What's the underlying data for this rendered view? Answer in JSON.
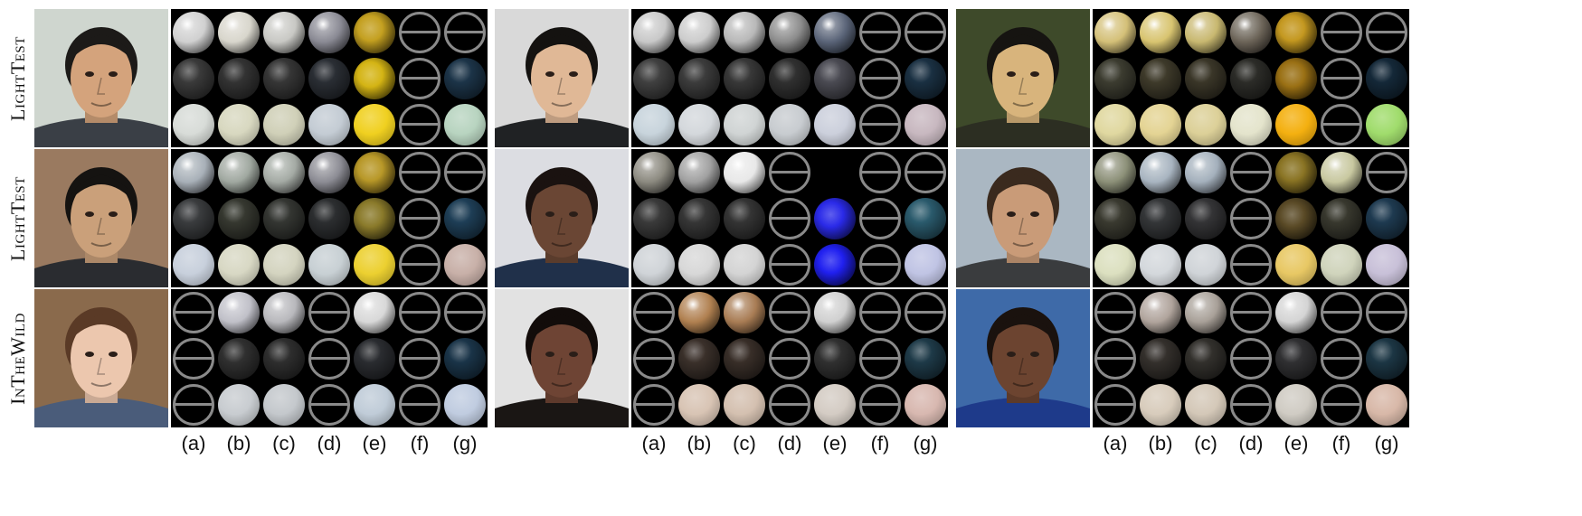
{
  "row_labels": [
    "LightTest",
    "LightTest",
    "InTheWild"
  ],
  "column_labels": [
    "(a)",
    "(b)",
    "(c)",
    "(d)",
    "(e)",
    "(f)",
    "(g)"
  ],
  "face_palettes": [
    {
      "bg": "#cfd6cf",
      "skin": "#d4a37c",
      "hair": "#1c1a18",
      "cloth": "#3a3f46"
    },
    {
      "bg": "#d9d9d9",
      "skin": "#e0b896",
      "hair": "#141210",
      "cloth": "#202224"
    },
    {
      "bg": "#3e4a2a",
      "skin": "#d8b47c",
      "hair": "#161411",
      "cloth": "#2c2e22"
    },
    {
      "bg": "#9a7a60",
      "skin": "#caa07a",
      "hair": "#151311",
      "cloth": "#2a2c30"
    },
    {
      "bg": "#dcdde2",
      "skin": "#6a4634",
      "hair": "#1a1210",
      "cloth": "#20304a"
    },
    {
      "bg": "#aab7c2",
      "skin": "#c99b78",
      "hair": "#3a2a1e",
      "cloth": "#3a3c3e"
    },
    {
      "bg": "#8a6a4c",
      "skin": "#ecc7ae",
      "hair": "#5a3a26",
      "cloth": "#4a5c7a"
    },
    {
      "bg": "#e2e2e2",
      "skin": "#6e4434",
      "hair": "#120c0a",
      "cloth": "#1a1614"
    },
    {
      "bg": "#3e6aa8",
      "skin": "#6c4430",
      "hair": "#1a120e",
      "cloth": "#1e3a8a"
    }
  ],
  "panels": [
    [
      [
        {
          "t": "chrome",
          "c": "#d0d0d0"
        },
        {
          "t": "chrome",
          "c": "#d8d6cc"
        },
        {
          "t": "chrome",
          "c": "#c8c8c4"
        },
        {
          "t": "chrome",
          "c": "#8a8a94"
        },
        {
          "t": "glow",
          "c": "#c4a020"
        },
        {
          "t": "empty"
        },
        {
          "t": "empty"
        }
      ],
      [
        {
          "t": "glossy",
          "c": "#3a3a3a"
        },
        {
          "t": "glossy",
          "c": "#333333"
        },
        {
          "t": "glossy",
          "c": "#363636"
        },
        {
          "t": "glossy",
          "c": "#2a2e34"
        },
        {
          "t": "glow",
          "c": "#d4b414"
        },
        {
          "t": "empty"
        },
        {
          "t": "glossy",
          "c": "#1c3448"
        }
      ],
      [
        {
          "t": "diffuse",
          "c": "#d8dcd8"
        },
        {
          "t": "diffuse",
          "c": "#d8d8c0"
        },
        {
          "t": "diffuse",
          "c": "#d0d0b8"
        },
        {
          "t": "diffuse",
          "c": "#c4ccd4"
        },
        {
          "t": "diffuse",
          "c": "#f0d020"
        },
        {
          "t": "empty"
        },
        {
          "t": "diffuse",
          "c": "#b8d4c0"
        }
      ]
    ],
    [
      [
        {
          "t": "chrome",
          "c": "#c8c8c8"
        },
        {
          "t": "chrome",
          "c": "#cccccc"
        },
        {
          "t": "chrome",
          "c": "#b8b8b8"
        },
        {
          "t": "chrome",
          "c": "#8c8c8c"
        },
        {
          "t": "chrome",
          "c": "#5a6478"
        },
        {
          "t": "empty"
        },
        {
          "t": "empty"
        }
      ],
      [
        {
          "t": "glossy",
          "c": "#404040"
        },
        {
          "t": "glossy",
          "c": "#3c3c3c"
        },
        {
          "t": "glossy",
          "c": "#383838"
        },
        {
          "t": "glossy",
          "c": "#303030"
        },
        {
          "t": "glossy",
          "c": "#4a4a52"
        },
        {
          "t": "empty"
        },
        {
          "t": "glossy",
          "c": "#1a3042"
        }
      ],
      [
        {
          "t": "diffuse",
          "c": "#c8d4dc"
        },
        {
          "t": "diffuse",
          "c": "#d4d8dc"
        },
        {
          "t": "diffuse",
          "c": "#d0d4d4"
        },
        {
          "t": "diffuse",
          "c": "#c8ccd0"
        },
        {
          "t": "diffuse",
          "c": "#ccd0dc"
        },
        {
          "t": "empty"
        },
        {
          "t": "diffuse",
          "c": "#c8b8c0"
        }
      ]
    ],
    [
      [
        {
          "t": "chrome",
          "c": "#d4c078"
        },
        {
          "t": "chrome",
          "c": "#d8c470"
        },
        {
          "t": "chrome",
          "c": "#c8b870"
        },
        {
          "t": "chrome",
          "c": "#6c6458"
        },
        {
          "t": "glow",
          "c": "#c49820"
        },
        {
          "t": "empty"
        },
        {
          "t": "empty"
        }
      ],
      [
        {
          "t": "glossy",
          "c": "#3c3c30"
        },
        {
          "t": "glossy",
          "c": "#3e3a2a"
        },
        {
          "t": "glossy",
          "c": "#3a3628"
        },
        {
          "t": "glossy",
          "c": "#2c2c28"
        },
        {
          "t": "glow",
          "c": "#9a7014"
        },
        {
          "t": "empty"
        },
        {
          "t": "glossy",
          "c": "#142838"
        }
      ],
      [
        {
          "t": "diffuse",
          "c": "#e0d8a0"
        },
        {
          "t": "diffuse",
          "c": "#e4d494"
        },
        {
          "t": "diffuse",
          "c": "#dcd098"
        },
        {
          "t": "diffuse",
          "c": "#e4e4cc"
        },
        {
          "t": "diffuse",
          "c": "#f4b010"
        },
        {
          "t": "empty"
        },
        {
          "t": "diffuse",
          "c": "#a0dc6c"
        }
      ]
    ],
    [
      [
        {
          "t": "chrome",
          "c": "#a8b0b8"
        },
        {
          "t": "chrome",
          "c": "#a0a8a0"
        },
        {
          "t": "chrome",
          "c": "#a4aaa4"
        },
        {
          "t": "chrome",
          "c": "#8c8c94"
        },
        {
          "t": "glow",
          "c": "#b89828"
        },
        {
          "t": "empty"
        },
        {
          "t": "empty"
        }
      ],
      [
        {
          "t": "glossy",
          "c": "#3a3c3e"
        },
        {
          "t": "glossy",
          "c": "#363830"
        },
        {
          "t": "glossy",
          "c": "#343632"
        },
        {
          "t": "glossy",
          "c": "#2c2e30"
        },
        {
          "t": "glow",
          "c": "#8a7a2a"
        },
        {
          "t": "empty"
        },
        {
          "t": "glossy",
          "c": "#1e3e56"
        }
      ],
      [
        {
          "t": "diffuse",
          "c": "#c8d0dc"
        },
        {
          "t": "diffuse",
          "c": "#d8d8c4"
        },
        {
          "t": "diffuse",
          "c": "#d4d4c0"
        },
        {
          "t": "diffuse",
          "c": "#c8d0d4"
        },
        {
          "t": "diffuse",
          "c": "#ecd030"
        },
        {
          "t": "empty"
        },
        {
          "t": "diffuse",
          "c": "#c8b0a8"
        }
      ]
    ],
    [
      [
        {
          "t": "chrome",
          "c": "#8c8a80"
        },
        {
          "t": "chrome",
          "c": "#a0a0a0"
        },
        {
          "t": "chrome",
          "c": "#e8e8e8"
        },
        {
          "t": "empty"
        },
        {
          "t": "none"
        },
        {
          "t": "empty"
        },
        {
          "t": "empty"
        }
      ],
      [
        {
          "t": "glossy",
          "c": "#3a3a3a"
        },
        {
          "t": "glossy",
          "c": "#363636"
        },
        {
          "t": "glossy",
          "c": "#343434"
        },
        {
          "t": "empty"
        },
        {
          "t": "glow",
          "c": "#2a2ae8"
        },
        {
          "t": "empty"
        },
        {
          "t": "glossy",
          "c": "#2a5a6c"
        }
      ],
      [
        {
          "t": "diffuse",
          "c": "#d0d4d8"
        },
        {
          "t": "diffuse",
          "c": "#d8d8d8"
        },
        {
          "t": "diffuse",
          "c": "#d4d4d4"
        },
        {
          "t": "empty"
        },
        {
          "t": "glow",
          "c": "#2020f0"
        },
        {
          "t": "empty"
        },
        {
          "t": "diffuse",
          "c": "#c0c4e4"
        }
      ]
    ],
    [
      [
        {
          "t": "chrome",
          "c": "#8c9078"
        },
        {
          "t": "chrome",
          "c": "#a8b4c0"
        },
        {
          "t": "chrome",
          "c": "#a4b0bc"
        },
        {
          "t": "empty"
        },
        {
          "t": "glow",
          "c": "#8a7424"
        },
        {
          "t": "chrome",
          "c": "#c8c8a0"
        },
        {
          "t": "empty"
        }
      ],
      [
        {
          "t": "glossy",
          "c": "#3a3a30"
        },
        {
          "t": "glossy",
          "c": "#343638"
        },
        {
          "t": "glossy",
          "c": "#343436"
        },
        {
          "t": "empty"
        },
        {
          "t": "glow",
          "c": "#5a4a26"
        },
        {
          "t": "glossy",
          "c": "#38382e"
        },
        {
          "t": "glossy",
          "c": "#1e3a50"
        }
      ],
      [
        {
          "t": "diffuse",
          "c": "#dce0c0"
        },
        {
          "t": "diffuse",
          "c": "#d4d8dc"
        },
        {
          "t": "diffuse",
          "c": "#d0d4d8"
        },
        {
          "t": "empty"
        },
        {
          "t": "diffuse",
          "c": "#e8c864"
        },
        {
          "t": "diffuse",
          "c": "#d0d4bc"
        },
        {
          "t": "diffuse",
          "c": "#c8c0d8"
        }
      ]
    ],
    [
      [
        {
          "t": "empty"
        },
        {
          "t": "chrome",
          "c": "#c0c0c8"
        },
        {
          "t": "chrome",
          "c": "#b8b8bc"
        },
        {
          "t": "empty"
        },
        {
          "t": "chrome",
          "c": "#d8d8d8"
        },
        {
          "t": "empty"
        },
        {
          "t": "empty"
        }
      ],
      [
        {
          "t": "empty"
        },
        {
          "t": "glossy",
          "c": "#303030"
        },
        {
          "t": "glossy",
          "c": "#2e2e2e"
        },
        {
          "t": "empty"
        },
        {
          "t": "glossy",
          "c": "#2a2c30"
        },
        {
          "t": "empty"
        },
        {
          "t": "glossy",
          "c": "#1a3448"
        }
      ],
      [
        {
          "t": "empty"
        },
        {
          "t": "diffuse",
          "c": "#c8ccd0"
        },
        {
          "t": "diffuse",
          "c": "#c4c8cc"
        },
        {
          "t": "empty"
        },
        {
          "t": "diffuse",
          "c": "#c0ccd8"
        },
        {
          "t": "empty"
        },
        {
          "t": "diffuse",
          "c": "#c0cce0"
        }
      ]
    ],
    [
      [
        {
          "t": "empty"
        },
        {
          "t": "chrome",
          "c": "#b08050"
        },
        {
          "t": "chrome",
          "c": "#a87c54"
        },
        {
          "t": "empty"
        },
        {
          "t": "chrome",
          "c": "#d0d0d0"
        },
        {
          "t": "empty"
        },
        {
          "t": "empty"
        }
      ],
      [
        {
          "t": "empty"
        },
        {
          "t": "glossy",
          "c": "#3a302a"
        },
        {
          "t": "glossy",
          "c": "#382e28"
        },
        {
          "t": "empty"
        },
        {
          "t": "glossy",
          "c": "#303030"
        },
        {
          "t": "empty"
        },
        {
          "t": "glossy",
          "c": "#1e3a48"
        }
      ],
      [
        {
          "t": "empty"
        },
        {
          "t": "diffuse",
          "c": "#d8c4b4"
        },
        {
          "t": "diffuse",
          "c": "#d4c0b0"
        },
        {
          "t": "empty"
        },
        {
          "t": "diffuse",
          "c": "#d4ccc4"
        },
        {
          "t": "empty"
        },
        {
          "t": "diffuse",
          "c": "#d8b8b0"
        }
      ]
    ],
    [
      [
        {
          "t": "empty"
        },
        {
          "t": "chrome",
          "c": "#b0a49c"
        },
        {
          "t": "chrome",
          "c": "#a8a098"
        },
        {
          "t": "empty"
        },
        {
          "t": "chrome",
          "c": "#d4d4d4"
        },
        {
          "t": "empty"
        },
        {
          "t": "empty"
        }
      ],
      [
        {
          "t": "empty"
        },
        {
          "t": "glossy",
          "c": "#34302c"
        },
        {
          "t": "glossy",
          "c": "#32302c"
        },
        {
          "t": "empty"
        },
        {
          "t": "glossy",
          "c": "#303032"
        },
        {
          "t": "empty"
        },
        {
          "t": "glossy",
          "c": "#1c3644"
        }
      ],
      [
        {
          "t": "empty"
        },
        {
          "t": "diffuse",
          "c": "#d8ccbc"
        },
        {
          "t": "diffuse",
          "c": "#d4c8b8"
        },
        {
          "t": "empty"
        },
        {
          "t": "diffuse",
          "c": "#d0ccc4"
        },
        {
          "t": "empty"
        },
        {
          "t": "diffuse",
          "c": "#d8b8a8"
        }
      ]
    ]
  ]
}
